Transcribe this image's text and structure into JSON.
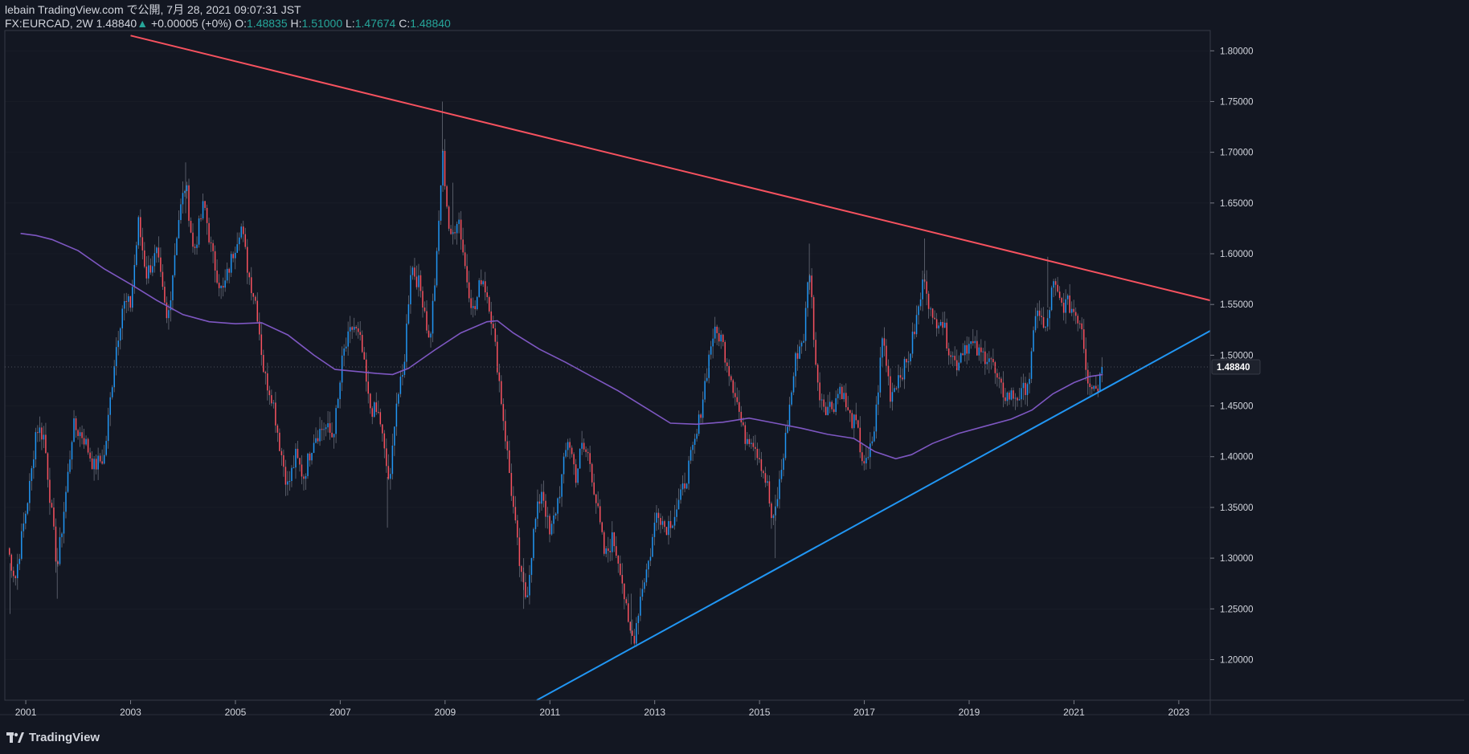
{
  "header": {
    "published": "lebain TradingView.com で公開, 7月 28, 2021 09:07:31 JST",
    "symbol": "FX:EURCAD, 2W",
    "last": "1.48840",
    "change_arrow": "▲",
    "change": "+0.00005 (+0%)",
    "o_label": "O:",
    "o_value": "1.48835",
    "h_label": "H:",
    "h_value": "1.51000",
    "l_label": "L:",
    "l_value": "1.47674",
    "c_label": "C:",
    "c_value": "1.48840"
  },
  "brand": {
    "name": "TradingView",
    "icon": "tradingview-logo-icon"
  },
  "colors": {
    "background": "#131722",
    "up": "#2196f3",
    "down": "#f7525f",
    "ma": "#7e57c2",
    "resistance": "#f7525f",
    "support": "#2196f3",
    "grid": "#2a2e39",
    "text": "#d1d4dc",
    "price_label_bg": "#1e222d"
  },
  "chart_data": {
    "type": "candlestick",
    "symbol": "FX:EURCAD",
    "interval": "2W",
    "x_range": [
      2000.6,
      2023.6
    ],
    "ylim": [
      1.16,
      1.82
    ],
    "y_ticks": [
      "1.20000",
      "1.25000",
      "1.30000",
      "1.35000",
      "1.40000",
      "1.45000",
      "1.50000",
      "1.55000",
      "1.60000",
      "1.65000",
      "1.70000",
      "1.75000",
      "1.80000"
    ],
    "x_ticks": [
      "2001",
      "2003",
      "2005",
      "2007",
      "2009",
      "2011",
      "2013",
      "2015",
      "2017",
      "2019",
      "2021",
      "2023"
    ],
    "current_price": "1.48840",
    "close_path": [
      [
        2000.65,
        1.31
      ],
      [
        2000.8,
        1.28
      ],
      [
        2000.95,
        1.33
      ],
      [
        2001.1,
        1.38
      ],
      [
        2001.2,
        1.43
      ],
      [
        2001.35,
        1.42
      ],
      [
        2001.5,
        1.34
      ],
      [
        2001.6,
        1.29
      ],
      [
        2001.8,
        1.38
      ],
      [
        2001.9,
        1.43
      ],
      [
        2002.1,
        1.42
      ],
      [
        2002.3,
        1.39
      ],
      [
        2002.5,
        1.4
      ],
      [
        2002.7,
        1.5
      ],
      [
        2002.85,
        1.55
      ],
      [
        2003.0,
        1.55
      ],
      [
        2003.15,
        1.63
      ],
      [
        2003.3,
        1.58
      ],
      [
        2003.5,
        1.6
      ],
      [
        2003.7,
        1.53
      ],
      [
        2003.9,
        1.63
      ],
      [
        2004.05,
        1.67
      ],
      [
        2004.2,
        1.6
      ],
      [
        2004.4,
        1.65
      ],
      [
        2004.55,
        1.6
      ],
      [
        2004.75,
        1.56
      ],
      [
        2004.95,
        1.6
      ],
      [
        2005.1,
        1.63
      ],
      [
        2005.25,
        1.58
      ],
      [
        2005.4,
        1.55
      ],
      [
        2005.55,
        1.48
      ],
      [
        2005.7,
        1.46
      ],
      [
        2005.85,
        1.41
      ],
      [
        2006.0,
        1.37
      ],
      [
        2006.15,
        1.4
      ],
      [
        2006.3,
        1.38
      ],
      [
        2006.5,
        1.42
      ],
      [
        2006.7,
        1.43
      ],
      [
        2006.85,
        1.42
      ],
      [
        2006.95,
        1.45
      ],
      [
        2007.05,
        1.5
      ],
      [
        2007.25,
        1.53
      ],
      [
        2007.4,
        1.51
      ],
      [
        2007.55,
        1.45
      ],
      [
        2007.75,
        1.44
      ],
      [
        2007.85,
        1.4
      ],
      [
        2007.95,
        1.37
      ],
      [
        2008.05,
        1.45
      ],
      [
        2008.2,
        1.48
      ],
      [
        2008.35,
        1.59
      ],
      [
        2008.5,
        1.57
      ],
      [
        2008.6,
        1.55
      ],
      [
        2008.7,
        1.51
      ],
      [
        2008.85,
        1.6
      ],
      [
        2008.95,
        1.7
      ],
      [
        2009.1,
        1.61
      ],
      [
        2009.25,
        1.64
      ],
      [
        2009.4,
        1.58
      ],
      [
        2009.55,
        1.54
      ],
      [
        2009.7,
        1.58
      ],
      [
        2009.85,
        1.55
      ],
      [
        2010.0,
        1.49
      ],
      [
        2010.15,
        1.42
      ],
      [
        2010.3,
        1.35
      ],
      [
        2010.45,
        1.28
      ],
      [
        2010.55,
        1.26
      ],
      [
        2010.7,
        1.33
      ],
      [
        2010.85,
        1.37
      ],
      [
        2011.0,
        1.32
      ],
      [
        2011.2,
        1.37
      ],
      [
        2011.35,
        1.42
      ],
      [
        2011.5,
        1.38
      ],
      [
        2011.6,
        1.41
      ],
      [
        2011.75,
        1.4
      ],
      [
        2011.9,
        1.35
      ],
      [
        2012.05,
        1.3
      ],
      [
        2012.2,
        1.32
      ],
      [
        2012.35,
        1.29
      ],
      [
        2012.5,
        1.23
      ],
      [
        2012.6,
        1.22
      ],
      [
        2012.75,
        1.27
      ],
      [
        2012.9,
        1.3
      ],
      [
        2013.05,
        1.35
      ],
      [
        2013.2,
        1.33
      ],
      [
        2013.35,
        1.34
      ],
      [
        2013.5,
        1.36
      ],
      [
        2013.65,
        1.39
      ],
      [
        2013.8,
        1.42
      ],
      [
        2013.95,
        1.47
      ],
      [
        2014.1,
        1.52
      ],
      [
        2014.25,
        1.52
      ],
      [
        2014.4,
        1.49
      ],
      [
        2014.55,
        1.46
      ],
      [
        2014.7,
        1.42
      ],
      [
        2014.85,
        1.42
      ],
      [
        2015.0,
        1.4
      ],
      [
        2015.15,
        1.37
      ],
      [
        2015.25,
        1.33
      ],
      [
        2015.4,
        1.38
      ],
      [
        2015.55,
        1.44
      ],
      [
        2015.7,
        1.5
      ],
      [
        2015.85,
        1.52
      ],
      [
        2015.95,
        1.59
      ],
      [
        2016.1,
        1.47
      ],
      [
        2016.25,
        1.45
      ],
      [
        2016.4,
        1.45
      ],
      [
        2016.55,
        1.47
      ],
      [
        2016.7,
        1.44
      ],
      [
        2016.85,
        1.43
      ],
      [
        2016.95,
        1.4
      ],
      [
        2017.05,
        1.39
      ],
      [
        2017.2,
        1.43
      ],
      [
        2017.35,
        1.52
      ],
      [
        2017.5,
        1.46
      ],
      [
        2017.65,
        1.48
      ],
      [
        2017.8,
        1.49
      ],
      [
        2017.9,
        1.51
      ],
      [
        2018.05,
        1.55
      ],
      [
        2018.15,
        1.58
      ],
      [
        2018.3,
        1.53
      ],
      [
        2018.45,
        1.54
      ],
      [
        2018.6,
        1.51
      ],
      [
        2018.75,
        1.49
      ],
      [
        2018.9,
        1.51
      ],
      [
        2019.05,
        1.51
      ],
      [
        2019.2,
        1.5
      ],
      [
        2019.4,
        1.5
      ],
      [
        2019.55,
        1.47
      ],
      [
        2019.7,
        1.46
      ],
      [
        2019.85,
        1.46
      ],
      [
        2020.0,
        1.46
      ],
      [
        2020.15,
        1.48
      ],
      [
        2020.3,
        1.55
      ],
      [
        2020.45,
        1.52
      ],
      [
        2020.6,
        1.57
      ],
      [
        2020.75,
        1.55
      ],
      [
        2020.9,
        1.55
      ],
      [
        2021.05,
        1.54
      ],
      [
        2021.15,
        1.53
      ],
      [
        2021.25,
        1.48
      ],
      [
        2021.35,
        1.47
      ],
      [
        2021.45,
        1.47
      ],
      [
        2021.55,
        1.4884
      ]
    ],
    "ma_path": [
      [
        2000.9,
        1.62
      ],
      [
        2001.2,
        1.618
      ],
      [
        2001.5,
        1.614
      ],
      [
        2002.0,
        1.603
      ],
      [
        2002.5,
        1.585
      ],
      [
        2003.0,
        1.57
      ],
      [
        2003.5,
        1.554
      ],
      [
        2004.0,
        1.54
      ],
      [
        2004.5,
        1.533
      ],
      [
        2005.0,
        1.531
      ],
      [
        2005.5,
        1.532
      ],
      [
        2006.0,
        1.52
      ],
      [
        2006.5,
        1.5
      ],
      [
        2006.9,
        1.486
      ],
      [
        2007.3,
        1.484
      ],
      [
        2007.7,
        1.482
      ],
      [
        2008.0,
        1.481
      ],
      [
        2008.3,
        1.487
      ],
      [
        2008.8,
        1.505
      ],
      [
        2009.3,
        1.522
      ],
      [
        2009.8,
        1.533
      ],
      [
        2010.0,
        1.534
      ],
      [
        2010.3,
        1.522
      ],
      [
        2010.8,
        1.506
      ],
      [
        2011.3,
        1.493
      ],
      [
        2011.8,
        1.479
      ],
      [
        2012.3,
        1.465
      ],
      [
        2012.8,
        1.449
      ],
      [
        2013.3,
        1.433
      ],
      [
        2013.8,
        1.432
      ],
      [
        2014.3,
        1.434
      ],
      [
        2014.8,
        1.438
      ],
      [
        2015.3,
        1.433
      ],
      [
        2015.8,
        1.428
      ],
      [
        2016.3,
        1.422
      ],
      [
        2016.8,
        1.418
      ],
      [
        2017.2,
        1.405
      ],
      [
        2017.6,
        1.398
      ],
      [
        2017.9,
        1.402
      ],
      [
        2018.3,
        1.413
      ],
      [
        2018.8,
        1.423
      ],
      [
        2019.3,
        1.43
      ],
      [
        2019.8,
        1.437
      ],
      [
        2020.2,
        1.446
      ],
      [
        2020.6,
        1.462
      ],
      [
        2021.0,
        1.473
      ],
      [
        2021.3,
        1.479
      ],
      [
        2021.55,
        1.481
      ]
    ],
    "resistance_line": [
      [
        2003.0,
        1.815
      ],
      [
        2023.6,
        1.554
      ]
    ],
    "support_line": [
      [
        2010.75,
        1.16
      ],
      [
        2023.6,
        1.524
      ]
    ],
    "peaks": [
      [
        2008.95,
        1.75
      ],
      [
        2004.05,
        1.69
      ],
      [
        2009.15,
        1.67
      ],
      [
        2015.95,
        1.61
      ],
      [
        2018.15,
        1.615
      ],
      [
        2020.5,
        1.597
      ]
    ],
    "troughs": [
      [
        2012.55,
        1.215
      ],
      [
        2010.5,
        1.25
      ],
      [
        2001.6,
        1.26
      ],
      [
        2000.7,
        1.245
      ],
      [
        2015.3,
        1.3
      ],
      [
        2007.9,
        1.33
      ]
    ]
  }
}
